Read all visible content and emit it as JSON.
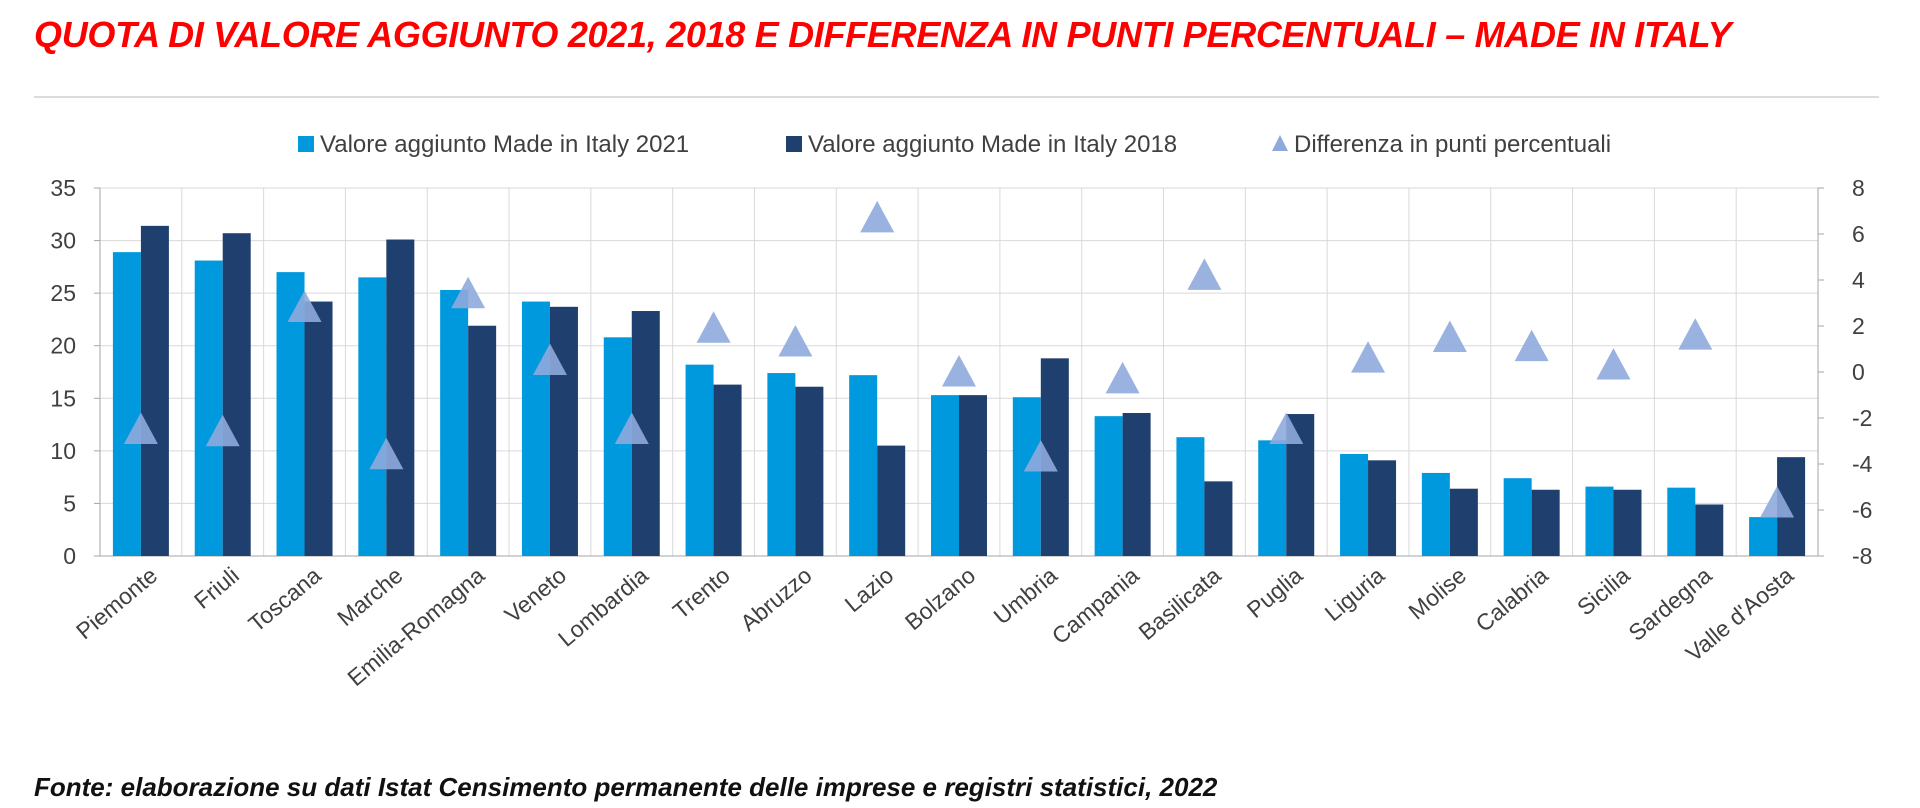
{
  "title": "QUOTA DI VALORE AGGIUNTO 2021, 2018 E DIFFERENZA IN PUNTI PERCENTUALI – MADE IN ITALY",
  "source": "Fonte: elaborazione su dati Istat Censimento permanente delle imprese e registri statistici, 2022",
  "colors": {
    "title": "#ff0000",
    "s2021": "#0099dd",
    "s2018": "#1f3f6e",
    "diff": "#8eaadb",
    "grid": "#d9d9d9"
  },
  "chart_data": {
    "type": "bar",
    "categories": [
      "Piemonte",
      "Friuli",
      "Toscana",
      "Marche",
      "Emilia-Romagna",
      "Veneto",
      "Lombardia",
      "Trento",
      "Abruzzo",
      "Lazio",
      "Bolzano",
      "Umbria",
      "Campania",
      "Basilicata",
      "Puglia",
      "Liguria",
      "Molise",
      "Calabria",
      "Sicilia",
      "Sardegna",
      "Valle d'Aosta"
    ],
    "series": [
      {
        "name": "Valore aggiunto Made in Italy 2021",
        "axis": "left",
        "mark": "bar",
        "values": [
          28.9,
          28.1,
          27.0,
          26.5,
          25.3,
          24.2,
          20.8,
          18.2,
          17.4,
          17.2,
          15.3,
          15.1,
          13.3,
          11.3,
          11.0,
          9.7,
          7.9,
          7.4,
          6.6,
          6.5,
          3.7
        ]
      },
      {
        "name": "Valore aggiunto Made in Italy 2018",
        "axis": "left",
        "mark": "bar",
        "values": [
          31.4,
          30.7,
          24.2,
          30.1,
          21.9,
          23.7,
          23.3,
          16.3,
          16.1,
          10.5,
          15.3,
          18.8,
          13.6,
          7.1,
          13.5,
          9.1,
          6.4,
          6.3,
          6.3,
          4.9,
          9.4
        ]
      },
      {
        "name": "Differenza in punti percentuali",
        "axis": "right",
        "mark": "triangle",
        "values": [
          -2.5,
          -2.6,
          2.8,
          -3.6,
          3.4,
          0.5,
          -2.5,
          1.9,
          1.3,
          6.7,
          0.0,
          -3.7,
          -0.3,
          4.2,
          -2.5,
          0.6,
          1.5,
          1.1,
          0.3,
          1.6,
          -5.7
        ]
      }
    ],
    "ylim": [
      0,
      35
    ],
    "yticks": [
      0,
      5,
      10,
      15,
      20,
      25,
      30,
      35
    ],
    "y2lim": [
      -8,
      8
    ],
    "y2ticks": [
      -8,
      -6,
      -4,
      -2,
      0,
      2,
      4,
      6,
      8
    ],
    "grid": true,
    "legend_position": "top-center"
  }
}
